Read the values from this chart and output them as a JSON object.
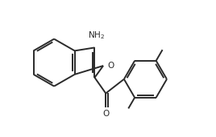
{
  "background_color": "#ffffff",
  "bond_color": "#2a2a2a",
  "line_width": 1.4,
  "NH2_label": "NH₂",
  "O_label": "O",
  "figsize": [
    2.68,
    1.71
  ],
  "dpi": 100
}
